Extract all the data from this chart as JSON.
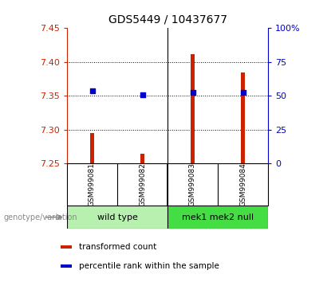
{
  "title": "GDS5449 / 10437677",
  "samples": [
    "GSM999081",
    "GSM999082",
    "GSM999083",
    "GSM999084"
  ],
  "bar_values": [
    7.295,
    7.265,
    7.412,
    7.385
  ],
  "bar_baseline": 7.25,
  "blue_values": [
    7.357,
    7.352,
    7.355,
    7.355
  ],
  "ylim_left": [
    7.25,
    7.45
  ],
  "ylim_right": [
    0,
    100
  ],
  "yticks_left": [
    7.25,
    7.3,
    7.35,
    7.4,
    7.45
  ],
  "yticks_right": [
    0,
    25,
    50,
    75,
    100
  ],
  "ytick_labels_right": [
    "0",
    "25",
    "50",
    "75",
    "100%"
  ],
  "bar_color": "#cc2200",
  "blue_color": "#0000cc",
  "groups": [
    {
      "label": "wild type",
      "samples": [
        0,
        1
      ],
      "color": "#b8f0b0"
    },
    {
      "label": "mek1 mek2 null",
      "samples": [
        2,
        3
      ],
      "color": "#44dd44"
    }
  ],
  "genotype_label": "genotype/variation",
  "legend_items": [
    {
      "color": "#cc2200",
      "label": "transformed count"
    },
    {
      "color": "#0000cc",
      "label": "percentile rank within the sample"
    }
  ],
  "grid_yticks": [
    7.3,
    7.35,
    7.4
  ],
  "left_axis_color": "#cc2200",
  "right_axis_color": "#0000cc",
  "sample_box_color": "#cccccc",
  "bar_width": 0.08
}
